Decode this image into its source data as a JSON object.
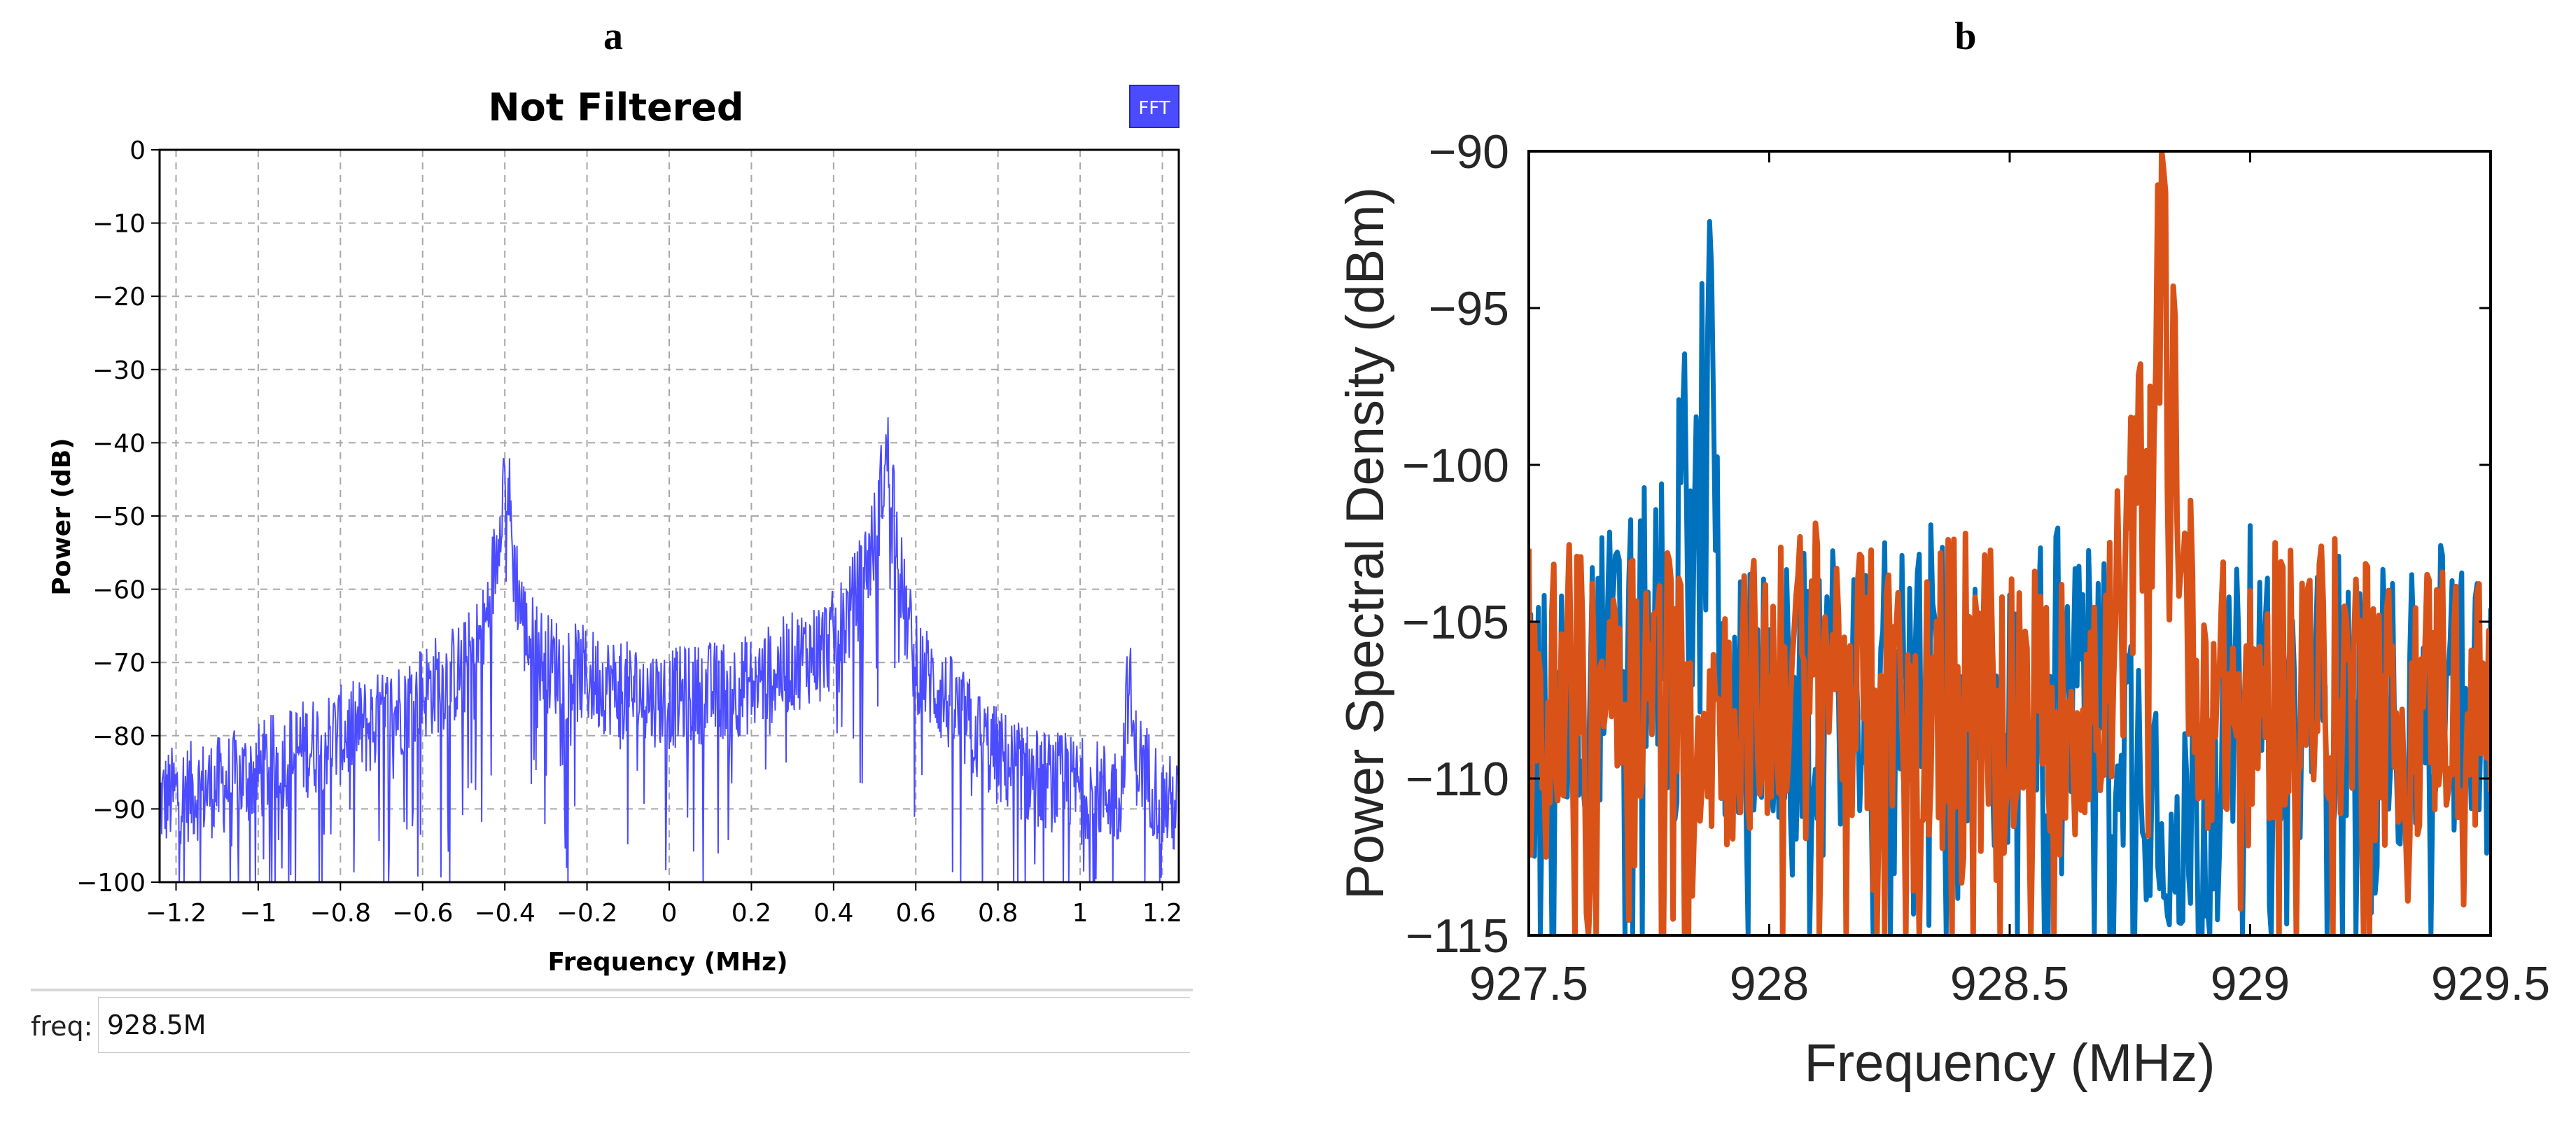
{
  "panel_a": {
    "letter": "a",
    "fft_button": "FFT",
    "freq_control": {
      "label": "freq:",
      "value": "928.5M"
    }
  },
  "panel_b": {
    "letter": "b"
  },
  "colors": {
    "a_trace": "#4b4bff",
    "fft_button_bg": "#4b4bff",
    "b_series_1": "#0072bd",
    "b_series_2": "#d95319"
  },
  "chart_data": [
    {
      "type": "line",
      "title": "Not Filtered",
      "xlabel": "Frequency (MHz)",
      "ylabel": "Power (dB)",
      "xlim": [
        -1.24,
        1.24
      ],
      "ylim": [
        -100,
        0
      ],
      "xticks": [
        -1.2,
        -1,
        -0.8,
        -0.6,
        -0.4,
        -0.2,
        0,
        0.2,
        0.4,
        0.6,
        0.8,
        1,
        1.2
      ],
      "xtick_labels": [
        "−1.2",
        "−1",
        "−0.8",
        "−0.6",
        "−0.4",
        "−0.2",
        "0",
        "0.2",
        "0.4",
        "0.6",
        "0.8",
        "1",
        "1.2"
      ],
      "yticks": [
        0,
        -10,
        -20,
        -30,
        -40,
        -50,
        -60,
        -70,
        -80,
        -90,
        -100
      ],
      "ytick_labels": [
        "0",
        "−10",
        "−20",
        "−30",
        "−40",
        "−50",
        "−60",
        "−70",
        "−80",
        "−90",
        "−100"
      ],
      "grid": true,
      "series": [
        {
          "x": [
            -1.24,
            -1.2,
            -1.1,
            -1.0,
            -0.9,
            -0.8,
            -0.7,
            -0.6,
            -0.5,
            -0.45,
            -0.42,
            -0.41,
            -0.4,
            -0.39,
            -0.38,
            -0.35,
            -0.3,
            -0.2,
            -0.1,
            0.0,
            0.1,
            0.2,
            0.3,
            0.4,
            0.45,
            0.5,
            0.52,
            0.53,
            0.54,
            0.55,
            0.57,
            0.6,
            0.7,
            0.8,
            0.9,
            1.0,
            1.1,
            1.11,
            1.12,
            1.13,
            1.2,
            1.24
          ],
          "y": [
            -89,
            -88,
            -87,
            -85,
            -82,
            -80,
            -78,
            -74,
            -71,
            -66,
            -55,
            -48,
            -44,
            -47,
            -56,
            -66,
            -70,
            -72,
            -74,
            -75,
            -74,
            -73,
            -70,
            -67,
            -62,
            -53,
            -45,
            -42,
            -43,
            -50,
            -62,
            -70,
            -77,
            -83,
            -86,
            -87,
            -88,
            -78,
            -72,
            -82,
            -89,
            -90
          ]
        }
      ]
    },
    {
      "type": "line",
      "title": "",
      "xlabel": "Frequency (MHz)",
      "ylabel": "Power Spectral Density (dBm)",
      "xlim": [
        927.5,
        929.5
      ],
      "ylim": [
        -115,
        -90
      ],
      "xticks": [
        927.5,
        928,
        928.5,
        929,
        929.5
      ],
      "xtick_labels": [
        "927.5",
        "928",
        "928.5",
        "929",
        "929.5"
      ],
      "yticks": [
        -90,
        -95,
        -100,
        -105,
        -110,
        -115
      ],
      "ytick_labels": [
        "−90",
        "−95",
        "−100",
        "−105",
        "−110",
        "−115"
      ],
      "grid": false,
      "series": [
        {
          "x": [
            927.5,
            927.6,
            927.7,
            927.8,
            927.82,
            927.84,
            927.86,
            927.87,
            927.88,
            927.9,
            928.0,
            928.1,
            928.2,
            928.3,
            928.4,
            928.5,
            928.6,
            928.7,
            928.8,
            928.9,
            929.0,
            929.1,
            929.2,
            929.3,
            929.4,
            929.5
          ],
          "y": [
            -108,
            -107,
            -106,
            -104,
            -100,
            -103,
            -98,
            -93,
            -97,
            -107,
            -108,
            -107,
            -107,
            -106,
            -107,
            -108,
            -106,
            -107,
            -110,
            -112,
            -106,
            -108,
            -107,
            -108,
            -107,
            -108
          ]
        },
        {
          "x": [
            927.5,
            927.6,
            927.7,
            927.8,
            927.9,
            928.0,
            928.1,
            928.2,
            928.3,
            928.4,
            928.5,
            928.6,
            928.7,
            928.76,
            928.78,
            928.8,
            928.82,
            928.83,
            928.84,
            928.86,
            928.9,
            929.0,
            929.1,
            929.2,
            929.3,
            929.4,
            929.5
          ],
          "y": [
            -106,
            -107,
            -106,
            -107,
            -108,
            -107,
            -106,
            -107,
            -108,
            -106,
            -107,
            -108,
            -107,
            -102,
            -99,
            -97,
            -92,
            -98,
            -96,
            -104,
            -107,
            -108,
            -106,
            -107,
            -108,
            -107,
            -108
          ]
        }
      ]
    }
  ]
}
